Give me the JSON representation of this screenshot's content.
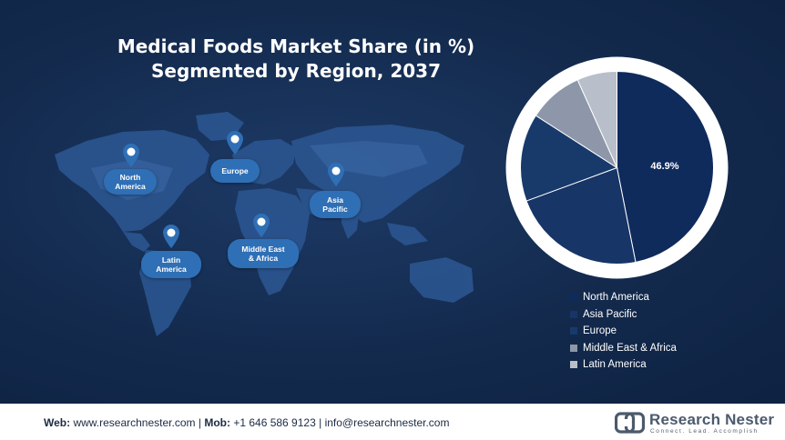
{
  "chart_data": {
    "type": "pie",
    "title_lines": [
      "Medical Foods Market Share (in %)",
      "Segmented by Region, 2037"
    ],
    "slices": [
      {
        "name": "North America",
        "value": 46.9,
        "color": "#0f2b5c"
      },
      {
        "name": "Asia Pacific",
        "value": 22.5,
        "color": "#173566"
      },
      {
        "name": "Europe",
        "value": 14.7,
        "color": "#183a6b"
      },
      {
        "name": "Middle East & Africa",
        "value": 9.2,
        "color": "#8d97a9"
      },
      {
        "name": "Latin America",
        "value": 6.7,
        "color": "#b8bfca"
      }
    ],
    "data_labels": [
      "46.9%"
    ],
    "legend_position": "bottom-right"
  },
  "map_labels": [
    "North\nAmerica",
    "Europe",
    "Asia\nPacific",
    "Latin\nAmerica",
    "Middle East\n& Africa"
  ],
  "colors": {
    "background": "#132a4d",
    "label_pill": "#2f6fb5",
    "pie_border": "#ffffff"
  },
  "footer": {
    "web_label": "Web:",
    "web_value": "www.researchnester.com",
    "mob_label": "Mob:",
    "mob_value": "+1 646 586 9123",
    "email": "info@researchnester.com",
    "sep": "|"
  },
  "logo": {
    "name": "Research Nester",
    "tagline": "Connect. Lead. Accomplish"
  }
}
